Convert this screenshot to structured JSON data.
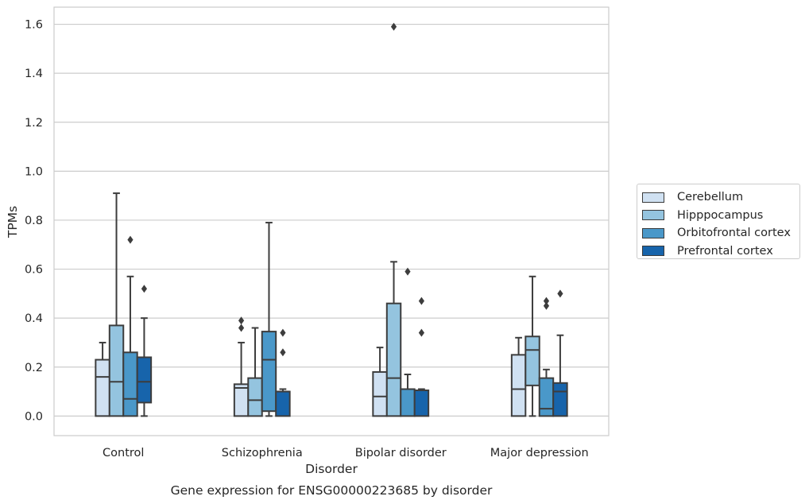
{
  "chart_data": {
    "type": "box",
    "caption": "Gene expression for ENSG00000223685 by disorder",
    "xlabel": "Disorder",
    "ylabel": "TPMs",
    "ylim": [
      -0.08,
      1.67
    ],
    "yticks": [
      0.0,
      0.2,
      0.4,
      0.6,
      0.8,
      1.0,
      1.2,
      1.4,
      1.6
    ],
    "ytick_labels": [
      "0.0",
      "0.2",
      "0.4",
      "0.6",
      "0.8",
      "1.0",
      "1.2",
      "1.4",
      "1.6"
    ],
    "grid": true,
    "legend_position": "right, outside plot",
    "categories": [
      "Control",
      "Schizophrenia",
      "Bipolar disorder",
      "Major depression"
    ],
    "series": [
      {
        "name": "Cerebellum",
        "color": "#d0e1f2",
        "boxes": [
          {
            "whisker_low": 0.0,
            "q1": 0.0,
            "median": 0.16,
            "q3": 0.23,
            "whisker_high": 0.3,
            "outliers": []
          },
          {
            "whisker_low": 0.0,
            "q1": 0.0,
            "median": 0.115,
            "q3": 0.13,
            "whisker_high": 0.3,
            "outliers": [
              0.36,
              0.39
            ]
          },
          {
            "whisker_low": 0.0,
            "q1": 0.0,
            "median": 0.08,
            "q3": 0.18,
            "whisker_high": 0.28,
            "outliers": []
          },
          {
            "whisker_low": 0.0,
            "q1": 0.0,
            "median": 0.11,
            "q3": 0.25,
            "whisker_high": 0.32,
            "outliers": []
          }
        ]
      },
      {
        "name": "Hipppocampus",
        "color": "#94c4df",
        "boxes": [
          {
            "whisker_low": 0.0,
            "q1": 0.0,
            "median": 0.14,
            "q3": 0.37,
            "whisker_high": 0.91,
            "outliers": []
          },
          {
            "whisker_low": 0.0,
            "q1": 0.0,
            "median": 0.065,
            "q3": 0.155,
            "whisker_high": 0.36,
            "outliers": []
          },
          {
            "whisker_low": 0.0,
            "q1": 0.0,
            "median": 0.155,
            "q3": 0.46,
            "whisker_high": 0.63,
            "outliers": [
              1.59
            ]
          },
          {
            "whisker_low": 0.0,
            "q1": 0.125,
            "median": 0.27,
            "q3": 0.325,
            "whisker_high": 0.57,
            "outliers": []
          }
        ]
      },
      {
        "name": "Orbitofrontal cortex",
        "color": "#4a98c9",
        "boxes": [
          {
            "whisker_low": 0.0,
            "q1": 0.0,
            "median": 0.07,
            "q3": 0.26,
            "whisker_high": 0.57,
            "outliers": [
              0.72
            ]
          },
          {
            "whisker_low": 0.0,
            "q1": 0.02,
            "median": 0.23,
            "q3": 0.345,
            "whisker_high": 0.79,
            "outliers": []
          },
          {
            "whisker_low": 0.0,
            "q1": 0.0,
            "median": 0.11,
            "q3": 0.11,
            "whisker_high": 0.17,
            "outliers": [
              0.59
            ]
          },
          {
            "whisker_low": 0.0,
            "q1": 0.0,
            "median": 0.03,
            "q3": 0.155,
            "whisker_high": 0.19,
            "outliers": [
              0.45,
              0.47
            ]
          }
        ]
      },
      {
        "name": "Prefrontal cortex",
        "color": "#1764ab",
        "boxes": [
          {
            "whisker_low": 0.0,
            "q1": 0.055,
            "median": 0.14,
            "q3": 0.24,
            "whisker_high": 0.4,
            "outliers": [
              0.52
            ]
          },
          {
            "whisker_low": 0.0,
            "q1": 0.0,
            "median": 0.1,
            "q3": 0.1,
            "whisker_high": 0.11,
            "outliers": [
              0.26,
              0.34
            ]
          },
          {
            "whisker_low": 0.0,
            "q1": 0.0,
            "median": 0.105,
            "q3": 0.105,
            "whisker_high": 0.11,
            "outliers": [
              0.34,
              0.47
            ]
          },
          {
            "whisker_low": 0.0,
            "q1": 0.0,
            "median": 0.1,
            "q3": 0.135,
            "whisker_high": 0.33,
            "outliers": [
              0.5
            ]
          }
        ]
      }
    ]
  }
}
